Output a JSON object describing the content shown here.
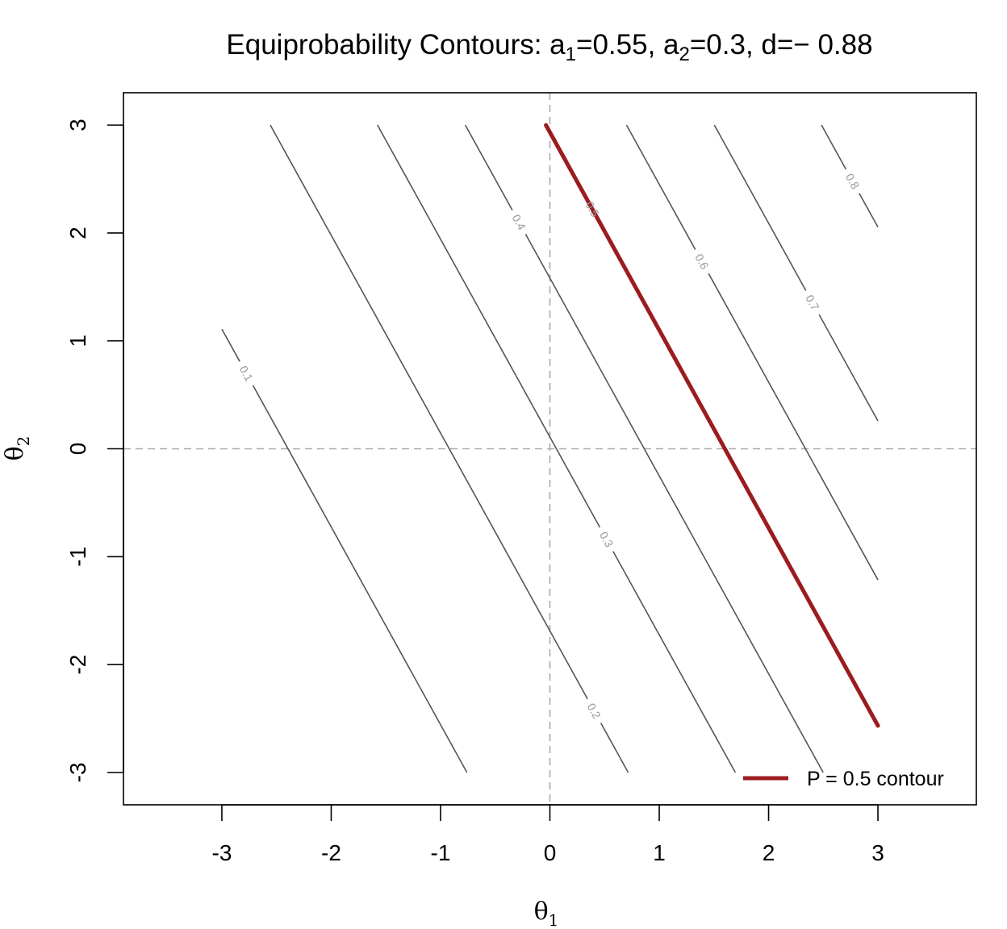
{
  "chart_data": {
    "type": "line",
    "title": {
      "prefix": "Equiprobability Contours: a",
      "sub1": "1",
      "mid1": "=0.55, a",
      "sub2": "2",
      "suffix": "=0.3, d=− 0.88"
    },
    "params": {
      "a1": 0.55,
      "a2": 0.3,
      "d": -0.88
    },
    "xlabel": {
      "base": "θ",
      "sub": "1"
    },
    "ylabel": {
      "base": "θ",
      "sub": "2"
    },
    "xlim": [
      -3.9,
      3.9
    ],
    "ylim": [
      -3.3,
      3.3
    ],
    "x_ticks": [
      -3,
      -2,
      -1,
      0,
      1,
      2,
      3
    ],
    "y_ticks": [
      -3,
      -2,
      -1,
      0,
      1,
      2,
      3
    ],
    "grid_range": [
      -3,
      3
    ],
    "reference_lines": {
      "x": 0,
      "y": 0,
      "style": "dashed",
      "color": "#aaaaaa"
    },
    "contours": [
      {
        "level": 0.1,
        "label": "0.1",
        "label_at": 0.1
      },
      {
        "level": 0.2,
        "label": "0.2",
        "label_at": 0.905
      },
      {
        "level": 0.3,
        "label": "0.3",
        "label_at": 0.64
      },
      {
        "level": 0.4,
        "label": "0.4",
        "label_at": 0.15
      },
      {
        "level": 0.5,
        "label": "0.5",
        "label_at": 0.14
      },
      {
        "level": 0.6,
        "label": "0.6",
        "label_at": 0.3
      },
      {
        "level": 0.7,
        "label": "0.7",
        "label_at": 0.6
      },
      {
        "level": 0.8,
        "label": "0.8",
        "label_at": 0.55
      }
    ],
    "contour_color": "#555555",
    "highlight": {
      "level": 0.5,
      "color": "#9b1c1f"
    },
    "legend": {
      "label": "P = 0.5 contour",
      "position": "bottom-right",
      "color": "#9b1c1f"
    }
  }
}
